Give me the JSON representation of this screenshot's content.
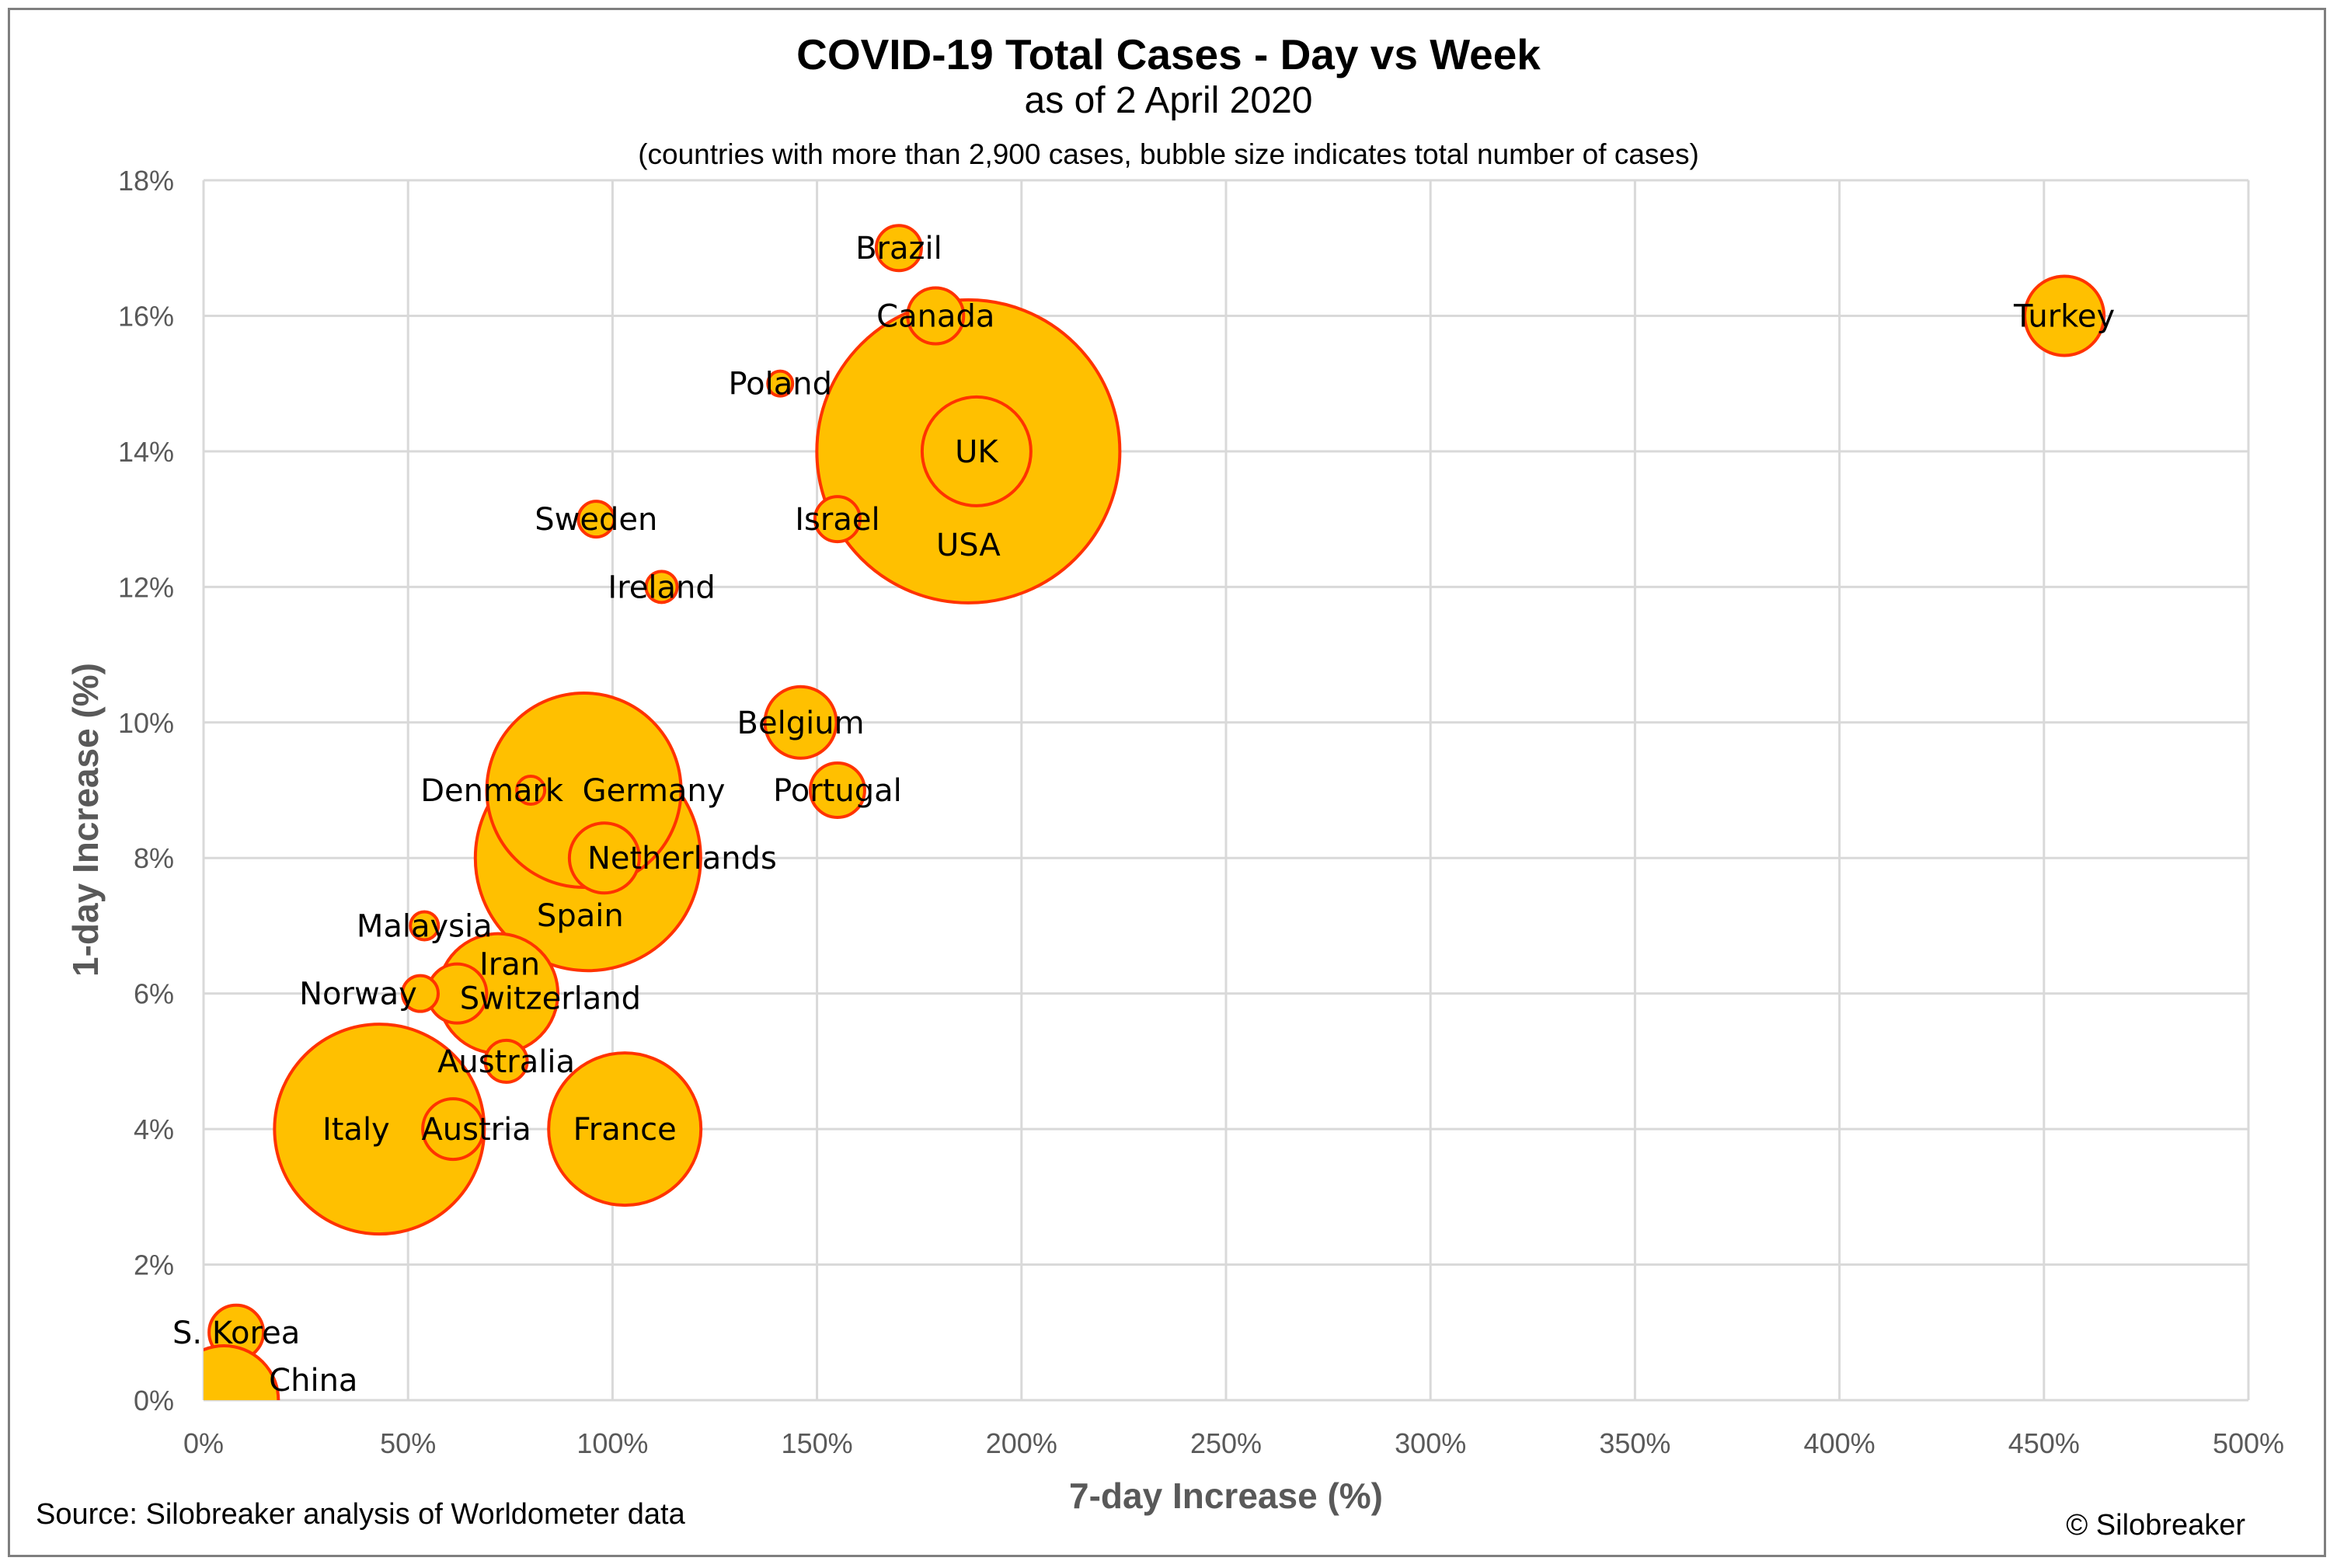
{
  "colors": {
    "bubble_fill": "#FFC000",
    "bubble_stroke": "#FF3300",
    "grid": "#D9D9D9",
    "axis_text": "#595959"
  },
  "chart_data": {
    "type": "bubble",
    "title": "COVID-19 Total Cases - Day vs Week",
    "subtitle": "as of 2 April 2020",
    "note": "(countries with more than 2,900 cases, bubble size indicates total number of cases)",
    "xlabel": "7-day Increase (%)",
    "ylabel": "1-day Increase (%)",
    "xlim": [
      0,
      500
    ],
    "ylim": [
      0,
      18
    ],
    "x_ticks": [
      0,
      50,
      100,
      150,
      200,
      250,
      300,
      350,
      400,
      450,
      500
    ],
    "y_ticks": [
      0,
      2,
      4,
      6,
      8,
      10,
      12,
      14,
      16,
      18
    ],
    "x_tick_labels": [
      "0%",
      "50%",
      "100%",
      "150%",
      "200%",
      "250%",
      "300%",
      "350%",
      "400%",
      "450%",
      "500%"
    ],
    "y_tick_labels": [
      "0%",
      "2%",
      "4%",
      "6%",
      "8%",
      "10%",
      "12%",
      "14%",
      "16%",
      "18%"
    ],
    "grid": true,
    "legend": "none",
    "points": [
      {
        "label": "USA",
        "x": 187,
        "y": 14,
        "r": 195,
        "lx": 0,
        "ly": 120
      },
      {
        "label": "Spain",
        "x": 94,
        "y": 8,
        "r": 145,
        "lx": -10,
        "ly": 74
      },
      {
        "label": "Germany",
        "x": 93,
        "y": 9,
        "r": 125,
        "lx": 90,
        "ly": 0
      },
      {
        "label": "Italy",
        "x": 43,
        "y": 4,
        "r": 135,
        "lx": -30,
        "ly": 0
      },
      {
        "label": "France",
        "x": 103,
        "y": 4,
        "r": 98,
        "lx": 0,
        "ly": 0
      },
      {
        "label": "Iran",
        "x": 72,
        "y": 6,
        "r": 77,
        "lx": 15,
        "ly": -38
      },
      {
        "label": "UK",
        "x": 189,
        "y": 14,
        "r": 70,
        "lx": 0,
        "ly": 0
      },
      {
        "label": "Switzerland",
        "x": 62,
        "y": 6,
        "r": 38,
        "lx": 120,
        "ly": 6
      },
      {
        "label": "Turkey",
        "x": 455,
        "y": 16,
        "r": 51,
        "lx": 0,
        "ly": 0
      },
      {
        "label": "Belgium",
        "x": 146,
        "y": 10,
        "r": 46,
        "lx": 0,
        "ly": 0
      },
      {
        "label": "Netherlands",
        "x": 98,
        "y": 8,
        "r": 45,
        "lx": 100,
        "ly": 0
      },
      {
        "label": "Austria",
        "x": 61,
        "y": 4,
        "r": 39,
        "lx": 30,
        "ly": 0
      },
      {
        "label": "S. Korea",
        "x": 8,
        "y": 1,
        "r": 35,
        "lx": 0,
        "ly": 0
      },
      {
        "label": "Canada",
        "x": 179,
        "y": 16,
        "r": 36,
        "lx": 0,
        "ly": 0
      },
      {
        "label": "Portugal",
        "x": 155,
        "y": 9,
        "r": 35,
        "lx": 0,
        "ly": 0
      },
      {
        "label": "Brazil",
        "x": 170,
        "y": 17,
        "r": 29,
        "lx": 0,
        "ly": 0
      },
      {
        "label": "Israel",
        "x": 155,
        "y": 13,
        "r": 29,
        "lx": 0,
        "ly": 0
      },
      {
        "label": "Australia",
        "x": 74,
        "y": 5,
        "r": 27,
        "lx": 0,
        "ly": 0
      },
      {
        "label": "Sweden",
        "x": 96,
        "y": 13,
        "r": 23,
        "lx": 0,
        "ly": 0
      },
      {
        "label": "Norway",
        "x": 53,
        "y": 6,
        "r": 23,
        "lx": -80,
        "ly": 0
      },
      {
        "label": "Ireland",
        "x": 112,
        "y": 12,
        "r": 20,
        "lx": 0,
        "ly": 0
      },
      {
        "label": "Denmark",
        "x": 80,
        "y": 9,
        "r": 18,
        "lx": -50,
        "ly": 0
      },
      {
        "label": "Malaysia",
        "x": 54,
        "y": 7,
        "r": 18,
        "lx": 0,
        "ly": 0
      },
      {
        "label": "Poland",
        "x": 141,
        "y": 15,
        "r": 16,
        "lx": 0,
        "ly": 0
      },
      {
        "label": "China",
        "x": 5,
        "y": 0,
        "r": 70,
        "lx": 115,
        "ly": -26
      }
    ]
  },
  "footer": {
    "source": "Source: Silobreaker analysis of Worldometer data",
    "copyright": "© Silobreaker"
  }
}
